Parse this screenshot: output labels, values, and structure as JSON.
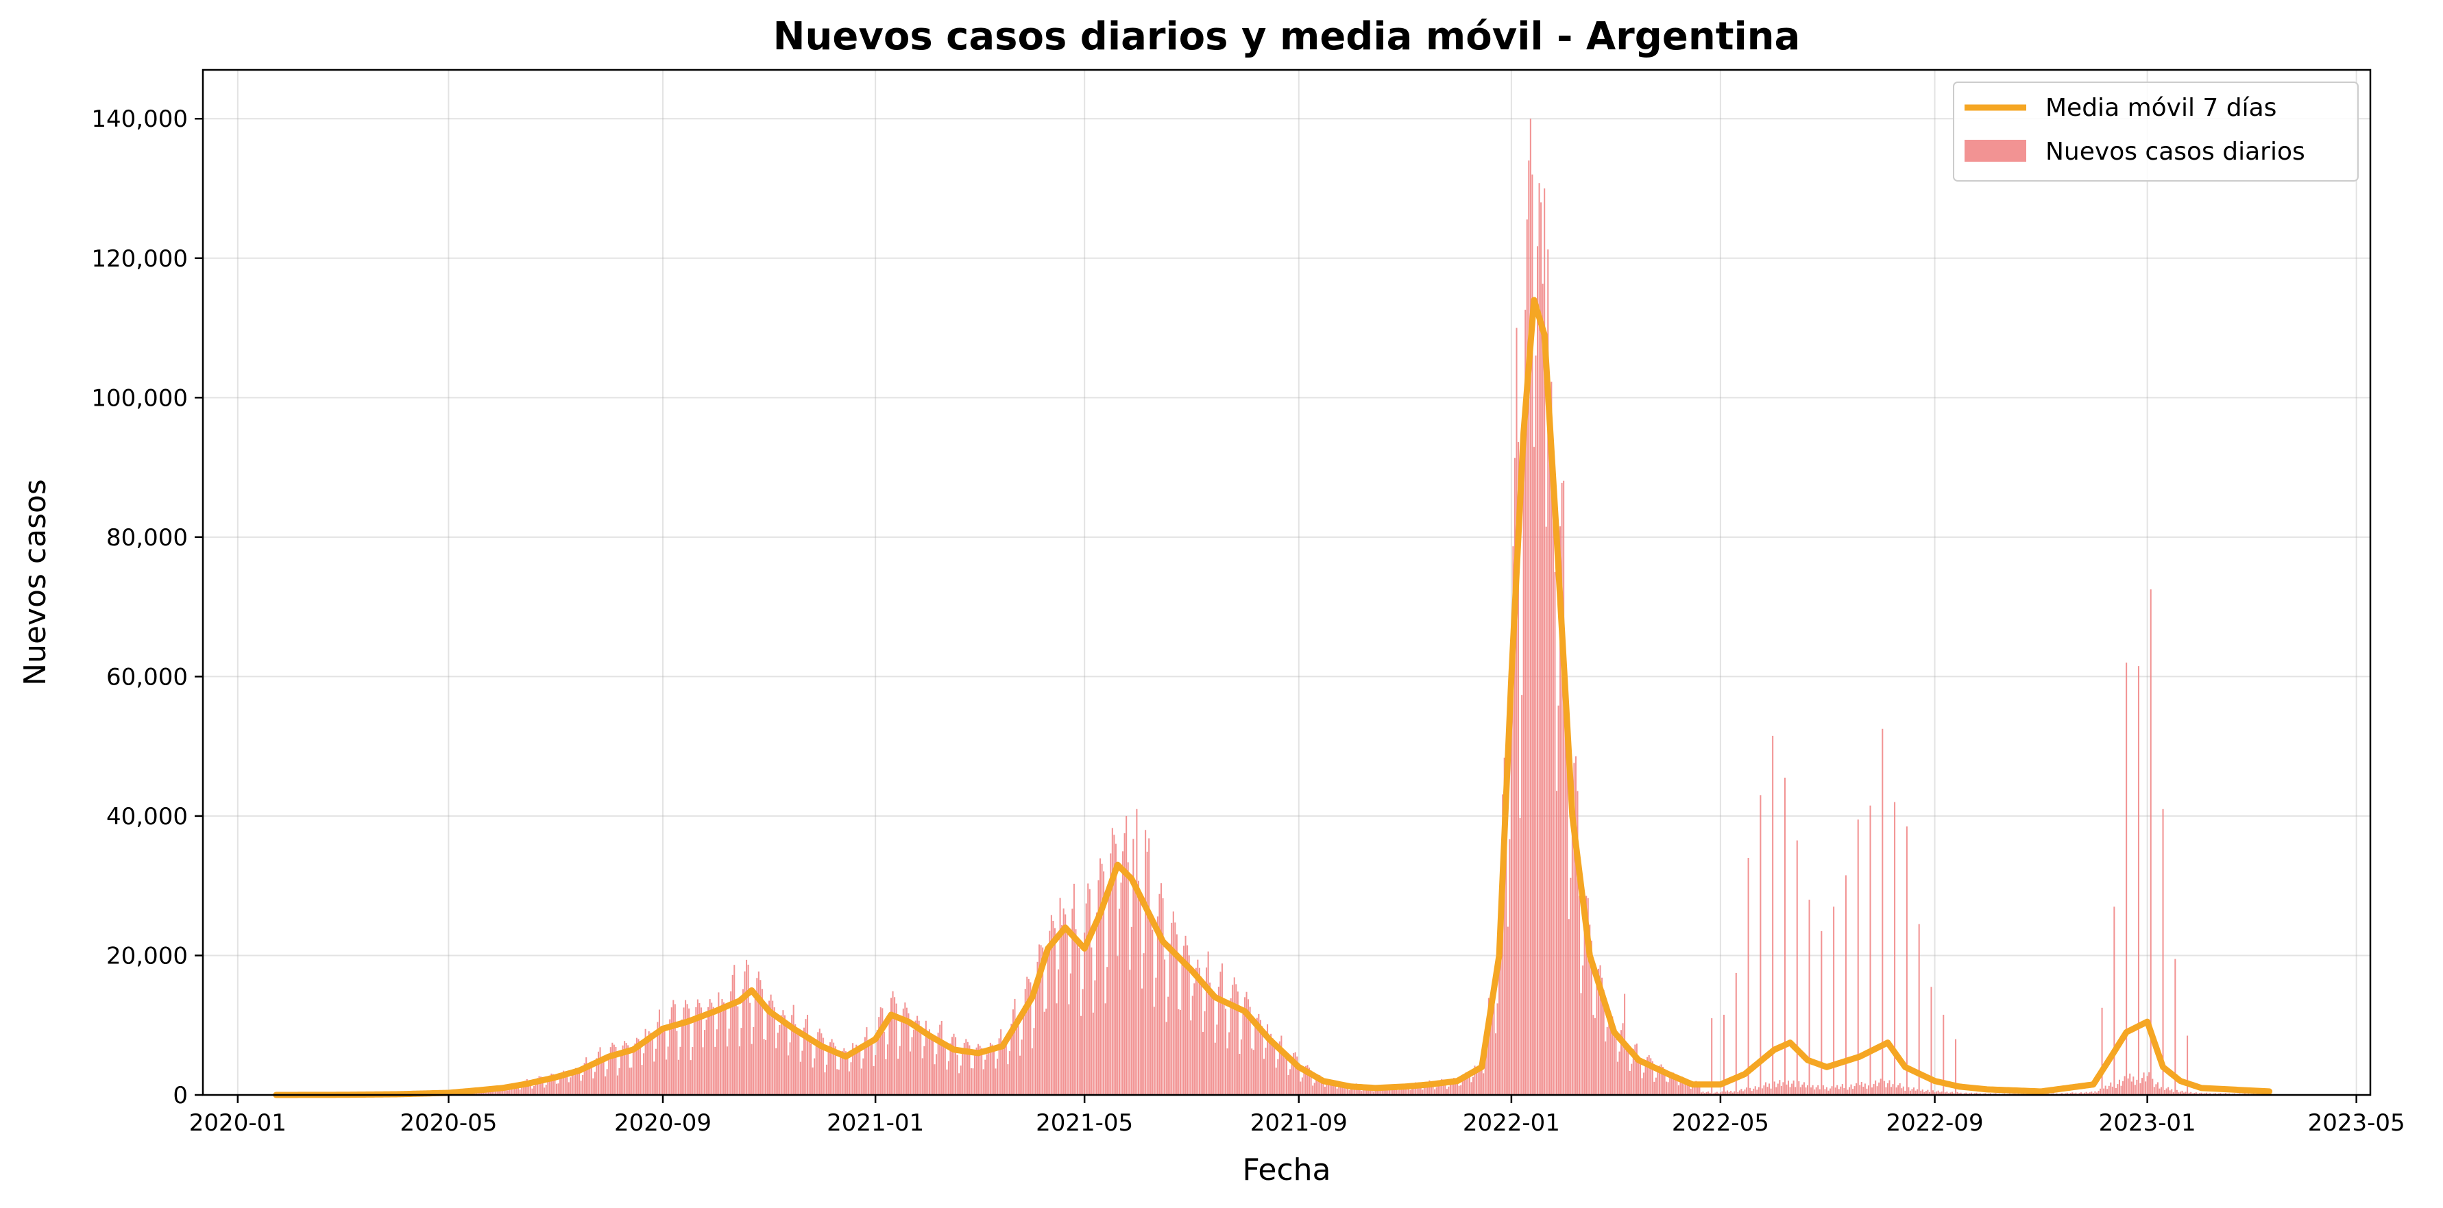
{
  "chart_data": {
    "type": "bar",
    "title": "Nuevos casos diarios y media móvil - Argentina",
    "xlabel": "Fecha",
    "ylabel": "Nuevos casos",
    "xlim": [
      "2019-12-12",
      "2023-05-09"
    ],
    "ylim": [
      0,
      147000
    ],
    "grid": true,
    "legend_position": "top-right",
    "x_ticks": [
      "2020-01",
      "2020-05",
      "2020-09",
      "2021-01",
      "2021-05",
      "2021-09",
      "2022-01",
      "2022-05",
      "2022-09",
      "2023-01",
      "2023-05"
    ],
    "y_ticks": [
      0,
      20000,
      40000,
      60000,
      80000,
      100000,
      120000,
      140000
    ],
    "y_tick_labels": [
      "0",
      "20,000",
      "40,000",
      "60,000",
      "80,000",
      "100,000",
      "120,000",
      "140,000"
    ],
    "date_range": [
      "2020-01-23",
      "2023-03-12"
    ],
    "colors": {
      "bars": "#F08080",
      "line": "#F5A623"
    },
    "series": [
      {
        "name": "Media móvil 7 días",
        "kind": "line",
        "points": [
          [
            "2020-01-23",
            0
          ],
          [
            "2020-03-01",
            20
          ],
          [
            "2020-04-01",
            100
          ],
          [
            "2020-05-01",
            300
          ],
          [
            "2020-05-15",
            600
          ],
          [
            "2020-06-01",
            1000
          ],
          [
            "2020-06-15",
            1600
          ],
          [
            "2020-07-01",
            2500
          ],
          [
            "2020-07-15",
            3500
          ],
          [
            "2020-08-01",
            5500
          ],
          [
            "2020-08-15",
            6500
          ],
          [
            "2020-09-01",
            9500
          ],
          [
            "2020-09-15",
            10500
          ],
          [
            "2020-10-01",
            12000
          ],
          [
            "2020-10-15",
            13500
          ],
          [
            "2020-10-22",
            15000
          ],
          [
            "2020-11-01",
            12000
          ],
          [
            "2020-11-15",
            9500
          ],
          [
            "2020-12-01",
            7000
          ],
          [
            "2020-12-15",
            5500
          ],
          [
            "2021-01-01",
            8000
          ],
          [
            "2021-01-10",
            11500
          ],
          [
            "2021-01-20",
            10500
          ],
          [
            "2021-02-01",
            8500
          ],
          [
            "2021-02-15",
            6500
          ],
          [
            "2021-03-01",
            6000
          ],
          [
            "2021-03-15",
            7000
          ],
          [
            "2021-04-01",
            14000
          ],
          [
            "2021-04-10",
            21000
          ],
          [
            "2021-04-20",
            24000
          ],
          [
            "2021-05-01",
            21000
          ],
          [
            "2021-05-10",
            26000
          ],
          [
            "2021-05-20",
            33000
          ],
          [
            "2021-05-28",
            31000
          ],
          [
            "2021-06-05",
            27000
          ],
          [
            "2021-06-15",
            22000
          ],
          [
            "2021-07-01",
            18000
          ],
          [
            "2021-07-15",
            14000
          ],
          [
            "2021-08-01",
            12000
          ],
          [
            "2021-08-15",
            8000
          ],
          [
            "2021-09-01",
            4000
          ],
          [
            "2021-09-15",
            2000
          ],
          [
            "2021-10-01",
            1200
          ],
          [
            "2021-10-15",
            1000
          ],
          [
            "2021-11-01",
            1200
          ],
          [
            "2021-11-15",
            1500
          ],
          [
            "2021-12-01",
            2000
          ],
          [
            "2021-12-15",
            4000
          ],
          [
            "2021-12-25",
            20000
          ],
          [
            "2022-01-01",
            60000
          ],
          [
            "2022-01-08",
            95000
          ],
          [
            "2022-01-14",
            114000
          ],
          [
            "2022-01-20",
            109000
          ],
          [
            "2022-01-27",
            80000
          ],
          [
            "2022-02-05",
            40000
          ],
          [
            "2022-02-15",
            20000
          ],
          [
            "2022-03-01",
            9000
          ],
          [
            "2022-03-15",
            5000
          ],
          [
            "2022-04-01",
            3000
          ],
          [
            "2022-04-15",
            1500
          ],
          [
            "2022-05-01",
            1500
          ],
          [
            "2022-05-15",
            3000
          ],
          [
            "2022-06-01",
            6500
          ],
          [
            "2022-06-10",
            7500
          ],
          [
            "2022-06-20",
            5000
          ],
          [
            "2022-07-01",
            4000
          ],
          [
            "2022-07-20",
            5500
          ],
          [
            "2022-08-05",
            7500
          ],
          [
            "2022-08-15",
            4000
          ],
          [
            "2022-09-01",
            2000
          ],
          [
            "2022-09-15",
            1200
          ],
          [
            "2022-10-01",
            800
          ],
          [
            "2022-11-01",
            500
          ],
          [
            "2022-12-01",
            1500
          ],
          [
            "2022-12-10",
            5000
          ],
          [
            "2022-12-20",
            9000
          ],
          [
            "2023-01-01",
            10500
          ],
          [
            "2023-01-10",
            4000
          ],
          [
            "2023-01-20",
            2000
          ],
          [
            "2023-02-01",
            1000
          ],
          [
            "2023-03-12",
            500
          ]
        ]
      },
      {
        "name": "Nuevos casos diarios",
        "kind": "bar",
        "spikes": [
          [
            "2021-05-25",
            40000
          ],
          [
            "2021-05-31",
            41000
          ],
          [
            "2021-06-05",
            38000
          ],
          [
            "2022-01-04",
            110000
          ],
          [
            "2022-01-11",
            134000
          ],
          [
            "2022-01-12",
            140000
          ],
          [
            "2022-01-13",
            132000
          ],
          [
            "2022-01-18",
            128000
          ],
          [
            "2022-01-20",
            130000
          ],
          [
            "2022-01-26",
            75000
          ],
          [
            "2022-03-07",
            14500
          ],
          [
            "2022-04-26",
            11000
          ],
          [
            "2022-05-03",
            11500
          ],
          [
            "2022-05-10",
            17500
          ],
          [
            "2022-05-17",
            34000
          ],
          [
            "2022-05-24",
            43000
          ],
          [
            "2022-05-31",
            51500
          ],
          [
            "2022-06-07",
            45500
          ],
          [
            "2022-06-14",
            36500
          ],
          [
            "2022-06-21",
            28000
          ],
          [
            "2022-06-28",
            23500
          ],
          [
            "2022-07-05",
            27000
          ],
          [
            "2022-07-12",
            31500
          ],
          [
            "2022-07-19",
            39500
          ],
          [
            "2022-07-26",
            41500
          ],
          [
            "2022-08-02",
            52500
          ],
          [
            "2022-08-09",
            42000
          ],
          [
            "2022-08-16",
            38500
          ],
          [
            "2022-08-23",
            24500
          ],
          [
            "2022-08-30",
            15500
          ],
          [
            "2022-09-06",
            11500
          ],
          [
            "2022-09-13",
            8000
          ],
          [
            "2022-12-06",
            12500
          ],
          [
            "2022-12-13",
            27000
          ],
          [
            "2022-12-20",
            62000
          ],
          [
            "2022-12-27",
            61500
          ],
          [
            "2023-01-03",
            72500
          ],
          [
            "2023-01-10",
            41000
          ],
          [
            "2023-01-17",
            19500
          ],
          [
            "2023-01-24",
            8500
          ]
        ]
      }
    ]
  }
}
